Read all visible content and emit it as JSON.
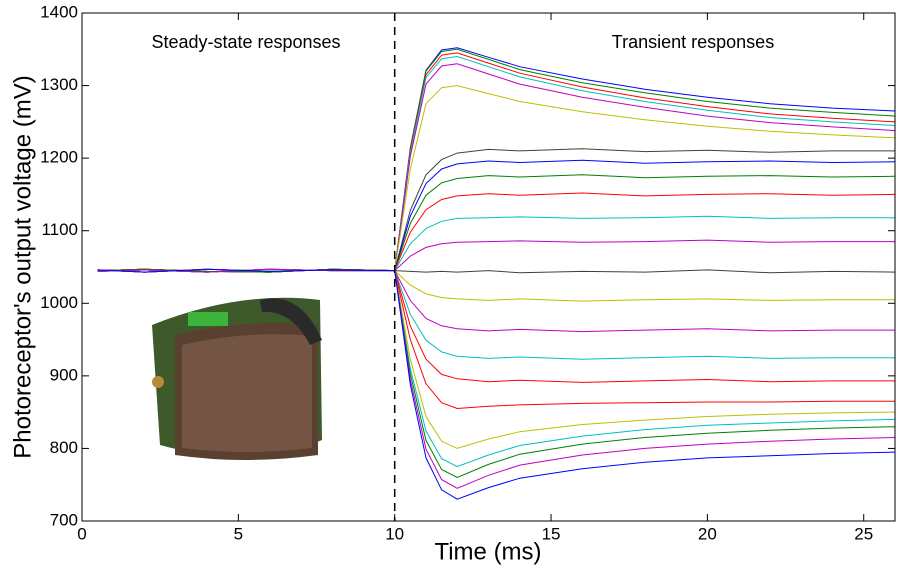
{
  "chart_data": {
    "type": "line",
    "xlabel": "Time (ms)",
    "ylabel": "Photoreceptor's output voltage (mV)",
    "annotations": [
      "Steady-state responses",
      "Transient responses"
    ],
    "vline_x": 10,
    "xlim": [
      0,
      26
    ],
    "ylim": [
      700,
      1400
    ],
    "xticks": [
      0,
      5,
      10,
      15,
      20,
      25
    ],
    "yticks": [
      700,
      800,
      900,
      1000,
      1100,
      1200,
      1300,
      1400
    ],
    "x": [
      0.5,
      2,
      4,
      6,
      8,
      10,
      10.5,
      11,
      11.5,
      12,
      13,
      14,
      16,
      18,
      20,
      22,
      24,
      26
    ],
    "series": [
      {
        "color": "#0000ff",
        "values": [
          1044,
          1046,
          1043,
          1047,
          1045,
          1045,
          1214,
          1321,
          1349,
          1352,
          1339,
          1326,
          1309,
          1295,
          1284,
          1275,
          1269,
          1265
        ]
      },
      {
        "color": "#008000",
        "values": [
          1046,
          1043,
          1047,
          1044,
          1046,
          1045,
          1213,
          1320,
          1347,
          1350,
          1336,
          1322,
          1304,
          1290,
          1278,
          1269,
          1263,
          1258
        ]
      },
      {
        "color": "#ff0000",
        "values": [
          1045,
          1047,
          1044,
          1043,
          1047,
          1045,
          1210,
          1315,
          1342,
          1345,
          1331,
          1317,
          1298,
          1283,
          1271,
          1261,
          1255,
          1250
        ]
      },
      {
        "color": "#00bfbf",
        "values": [
          1044,
          1046,
          1043,
          1047,
          1045,
          1045,
          1207,
          1311,
          1337,
          1340,
          1326,
          1312,
          1293,
          1278,
          1266,
          1256,
          1250,
          1245
        ]
      },
      {
        "color": "#bf00bf",
        "values": [
          1046,
          1043,
          1047,
          1044,
          1046,
          1045,
          1202,
          1302,
          1327,
          1330,
          1316,
          1302,
          1284,
          1270,
          1258,
          1249,
          1243,
          1238
        ]
      },
      {
        "color": "#bfbf00",
        "values": [
          1045,
          1047,
          1044,
          1043,
          1047,
          1045,
          1185,
          1275,
          1297,
          1300,
          1289,
          1278,
          1264,
          1253,
          1244,
          1237,
          1232,
          1228
        ]
      },
      {
        "color": "#404040",
        "values": [
          1044,
          1046,
          1043,
          1047,
          1045,
          1045,
          1128,
          1177,
          1198,
          1207,
          1212,
          1210,
          1213,
          1209,
          1211,
          1208,
          1210,
          1210
        ]
      },
      {
        "color": "#0000ff",
        "values": [
          1046,
          1043,
          1047,
          1044,
          1046,
          1045,
          1120,
          1165,
          1185,
          1192,
          1196,
          1194,
          1197,
          1193,
          1195,
          1196,
          1194,
          1195
        ]
      },
      {
        "color": "#008000",
        "values": [
          1045,
          1047,
          1044,
          1043,
          1047,
          1045,
          1110,
          1149,
          1166,
          1172,
          1176,
          1174,
          1177,
          1173,
          1175,
          1176,
          1174,
          1175
        ]
      },
      {
        "color": "#ff0000",
        "values": [
          1044,
          1046,
          1043,
          1047,
          1045,
          1045,
          1098,
          1129,
          1143,
          1148,
          1151,
          1149,
          1152,
          1148,
          1150,
          1151,
          1149,
          1150
        ]
      },
      {
        "color": "#00bfbf",
        "values": [
          1046,
          1043,
          1047,
          1044,
          1046,
          1045,
          1082,
          1103,
          1113,
          1117,
          1118,
          1119,
          1117,
          1118,
          1120,
          1117,
          1118,
          1118
        ]
      },
      {
        "color": "#bf00bf",
        "values": [
          1045,
          1047,
          1044,
          1043,
          1047,
          1045,
          1065,
          1077,
          1082,
          1084,
          1085,
          1086,
          1084,
          1085,
          1087,
          1084,
          1085,
          1085
        ]
      },
      {
        "color": "#404040",
        "values": [
          1044,
          1046,
          1043,
          1047,
          1045,
          1045,
          1044,
          1043,
          1044,
          1043,
          1045,
          1042,
          1044,
          1043,
          1046,
          1042,
          1044,
          1043
        ]
      },
      {
        "color": "#bfbf00",
        "values": [
          1046,
          1043,
          1047,
          1044,
          1046,
          1045,
          1025,
          1013,
          1008,
          1006,
          1004,
          1006,
          1003,
          1005,
          1006,
          1004,
          1005,
          1005
        ]
      },
      {
        "color": "#bf00bf",
        "values": [
          1045,
          1047,
          1044,
          1043,
          1047,
          1045,
          1004,
          979,
          969,
          965,
          962,
          964,
          961,
          963,
          965,
          962,
          963,
          963
        ]
      },
      {
        "color": "#00bfbf",
        "values": [
          1044,
          1046,
          1043,
          1047,
          1045,
          1045,
          985,
          949,
          933,
          927,
          924,
          926,
          923,
          925,
          927,
          924,
          925,
          925
        ]
      },
      {
        "color": "#ff0000",
        "values": [
          1046,
          1043,
          1047,
          1044,
          1046,
          1045,
          969,
          923,
          902,
          896,
          892,
          894,
          891,
          893,
          895,
          892,
          893,
          893
        ]
      },
      {
        "color": "#ff0000",
        "values": [
          1045,
          1047,
          1044,
          1043,
          1047,
          1045,
          950,
          889,
          863,
          855,
          858,
          860,
          862,
          863,
          864,
          864,
          865,
          865
        ]
      },
      {
        "color": "#bfbf00",
        "values": [
          1044,
          1046,
          1043,
          1047,
          1045,
          1045,
          923,
          844,
          810,
          800,
          813,
          823,
          833,
          839,
          844,
          847,
          849,
          850
        ]
      },
      {
        "color": "#00bfbf",
        "values": [
          1046,
          1043,
          1047,
          1044,
          1046,
          1045,
          910,
          824,
          786,
          775,
          791,
          804,
          817,
          826,
          832,
          835,
          838,
          840
        ]
      },
      {
        "color": "#008000",
        "values": [
          1045,
          1047,
          1044,
          1043,
          1047,
          1045,
          903,
          811,
          771,
          760,
          778,
          792,
          806,
          815,
          821,
          825,
          828,
          830
        ]
      },
      {
        "color": "#bf00bf",
        "values": [
          1044,
          1046,
          1043,
          1047,
          1045,
          1045,
          895,
          799,
          757,
          745,
          763,
          777,
          791,
          800,
          806,
          810,
          813,
          815
        ]
      },
      {
        "color": "#0000ff",
        "values": [
          1046,
          1043,
          1047,
          1044,
          1046,
          1045,
          888,
          787,
          743,
          730,
          746,
          759,
          772,
          781,
          787,
          790,
          793,
          795
        ]
      }
    ]
  }
}
